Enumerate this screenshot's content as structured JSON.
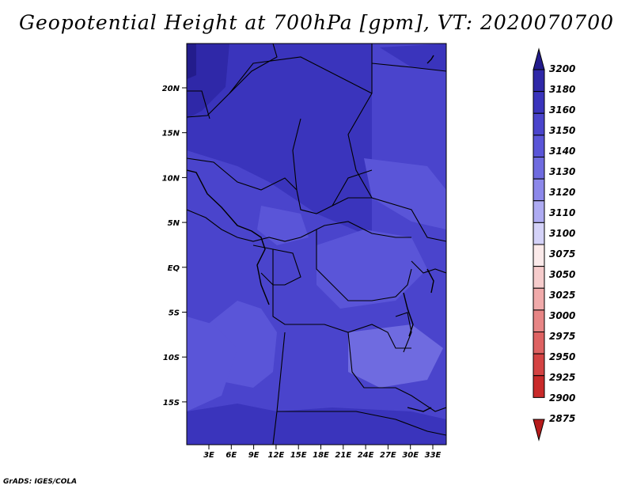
{
  "title": "Geopotential Height at 700hPa [gpm], VT: 2020070700",
  "credit": "GrADS: IGES/COLA",
  "map": {
    "lat_labels": [
      "20N",
      "15N",
      "10N",
      "5N",
      "EQ",
      "5S",
      "10S",
      "15S"
    ],
    "lon_labels": [
      "3E",
      "6E",
      "9E",
      "12E",
      "15E",
      "18E",
      "21E",
      "24E",
      "27E",
      "30E",
      "33E"
    ]
  },
  "colorbar": {
    "levels": [
      "3200",
      "3180",
      "3160",
      "3150",
      "3140",
      "3130",
      "3120",
      "3110",
      "3100",
      "3075",
      "3050",
      "3025",
      "3000",
      "2975",
      "2950",
      "2925",
      "2900",
      "2875"
    ],
    "colors": [
      "#231c8c",
      "#2f28a8",
      "#3a34bc",
      "#4a44cc",
      "#5a55d8",
      "#6f6be0",
      "#8c88ea",
      "#aeabf2",
      "#d4d2f8",
      "#fbeaea",
      "#f6cccc",
      "#f0aaaa",
      "#e78585",
      "#de6262",
      "#d44343",
      "#c92a2a",
      "#b61b1b"
    ]
  }
}
